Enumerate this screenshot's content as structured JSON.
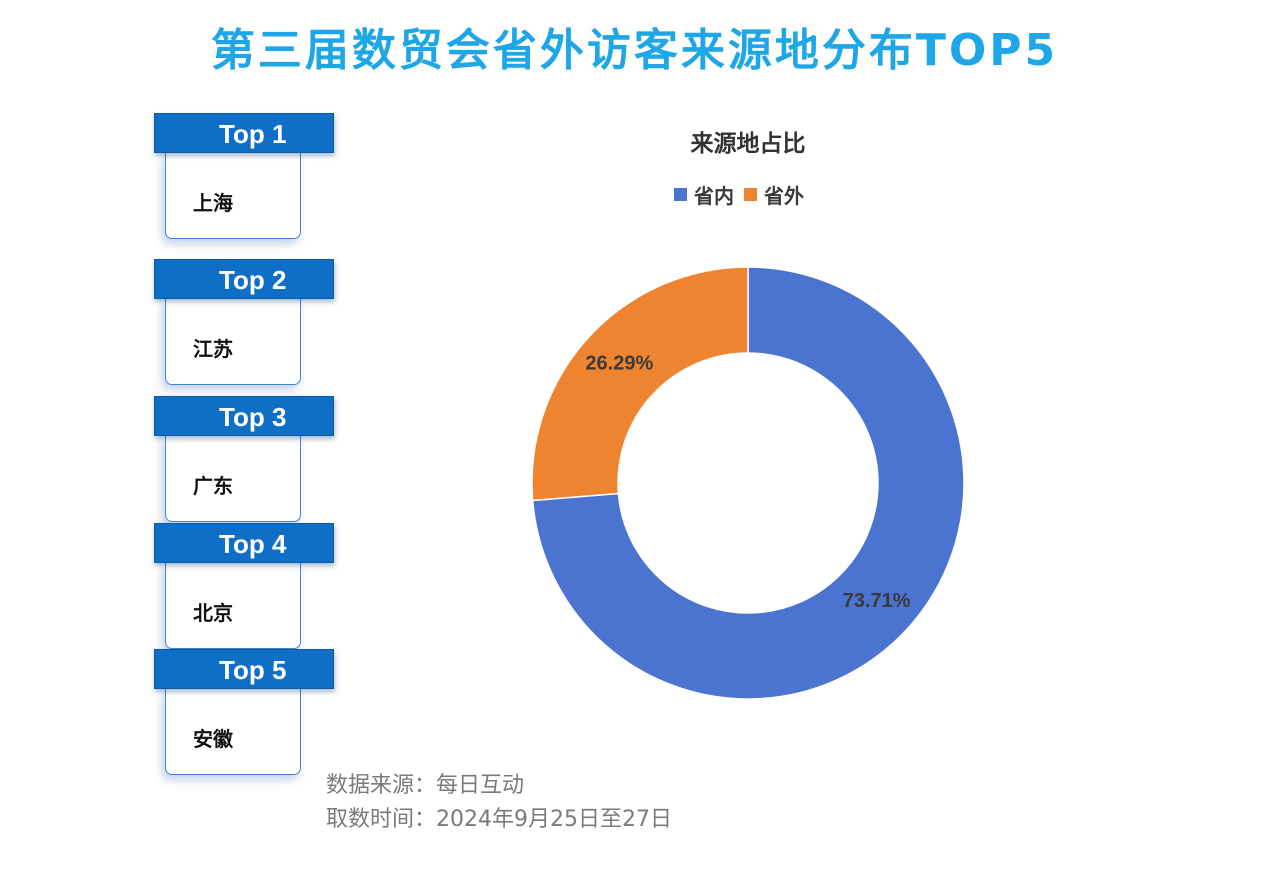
{
  "title": "第三届数贸会省外访客来源地分布TOP5",
  "ranking": [
    {
      "rank": "Top 1",
      "place": "上海"
    },
    {
      "rank": "Top 2",
      "place": "江苏"
    },
    {
      "rank": "Top 3",
      "place": "广东"
    },
    {
      "rank": "Top 4",
      "place": "北京"
    },
    {
      "rank": "Top 5",
      "place": "安徽"
    }
  ],
  "chart_data": {
    "type": "pie",
    "variant": "donut",
    "title": "来源地占比",
    "legend_position": "top",
    "categories": [
      "省内",
      "省外"
    ],
    "values": [
      73.71,
      26.29
    ],
    "labels": [
      "73.71%",
      "26.29%"
    ],
    "colors": [
      "#4a74cf",
      "#ee8330"
    ]
  },
  "source": {
    "line1": "数据来源：每日互动",
    "line2": "取数时间：2024年9月25日至27日"
  }
}
